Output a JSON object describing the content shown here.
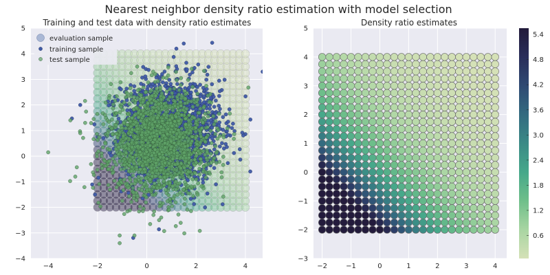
{
  "figure": {
    "title": "Nearest neighbor density ratio estimation with model selection"
  },
  "chart_data": [
    {
      "type": "scatter",
      "title": "Training and test data with density ratio estimates",
      "xlabel": "",
      "ylabel": "",
      "xlim": [
        -4.7,
        4.7
      ],
      "ylim": [
        -4,
        5
      ],
      "xticks": [
        "−4",
        "−2",
        "0",
        "2",
        "4"
      ],
      "yticks": [
        "−4",
        "−3",
        "−2",
        "−1",
        "0",
        "1",
        "2",
        "3",
        "4",
        "5"
      ],
      "grid": true,
      "legend_position": "top-left",
      "evaluation_grid": {
        "x_from": -2,
        "x_to": 4,
        "y_from": -2,
        "y_to": 4,
        "step": 0.25
      },
      "series": [
        {
          "name": "evaluation sample",
          "color": "#8fa3c9",
          "marker": "large-circle"
        },
        {
          "name": "training sample",
          "color": "#3f5aa6",
          "marker": "small-circle",
          "distribution": {
            "mean": [
              1,
              1
            ],
            "std": 1,
            "count": 1800
          },
          "outliers": [
            [
              4.7,
              3.3
            ],
            [
              -2.7,
              2.0
            ],
            [
              1.5,
              4.4
            ],
            [
              1.2,
              4.2
            ],
            [
              4.2,
              -0.6
            ],
            [
              -2.1,
              -1.5
            ]
          ]
        },
        {
          "name": "test sample",
          "color": "#5fa368",
          "marker": "small-circle",
          "distribution": {
            "mean": [
              0.5,
              0.5
            ],
            "std": 1,
            "count": 2000
          },
          "outliers": [
            [
              -4.0,
              0.15
            ],
            [
              -1.1,
              -3.4
            ],
            [
              -1.1,
              -3.1
            ],
            [
              -0.5,
              -3.1
            ],
            [
              0.5,
              -2.5
            ],
            [
              -3.1,
              1.4
            ],
            [
              -2.7,
              0.9
            ],
            [
              -2.5,
              1.3
            ],
            [
              -2.9,
              -0.8
            ]
          ]
        }
      ]
    },
    {
      "type": "scatter",
      "title": "Density ratio estimates",
      "xlabel": "",
      "ylabel": "",
      "xlim": [
        -2.3,
        4.4
      ],
      "ylim": [
        -3,
        5
      ],
      "xticks": [
        "−2",
        "−1",
        "0",
        "1",
        "2",
        "3",
        "4"
      ],
      "yticks": [
        "−3",
        "−2",
        "−1",
        "0",
        "1",
        "2",
        "3",
        "4",
        "5"
      ],
      "grid": true,
      "evaluation_grid": {
        "x_from": -2,
        "x_to": 4,
        "y_from": -2,
        "y_to": 4,
        "step": 0.25
      },
      "ratio_model": {
        "train_mean": [
          1,
          1
        ],
        "test_mean": [
          0.5,
          0.5
        ],
        "std": 1,
        "min": 0.05,
        "max": 5.5
      },
      "colorbar": {
        "min": 0.05,
        "max": 5.55,
        "ticks": [
          0.6,
          1.2,
          1.8,
          2.4,
          3.0,
          3.6,
          4.2,
          4.8,
          5.4
        ],
        "tick_labels": [
          "0.6",
          "1.2",
          "1.8",
          "2.4",
          "3.0",
          "3.6",
          "4.2",
          "4.8",
          "5.4"
        ],
        "colors": [
          "#d5e1b7",
          "#a8d5a2",
          "#6fbf8a",
          "#46a88a",
          "#3a8a86",
          "#336b80",
          "#2f4a73",
          "#2a2e5a",
          "#221a3a"
        ]
      }
    }
  ]
}
